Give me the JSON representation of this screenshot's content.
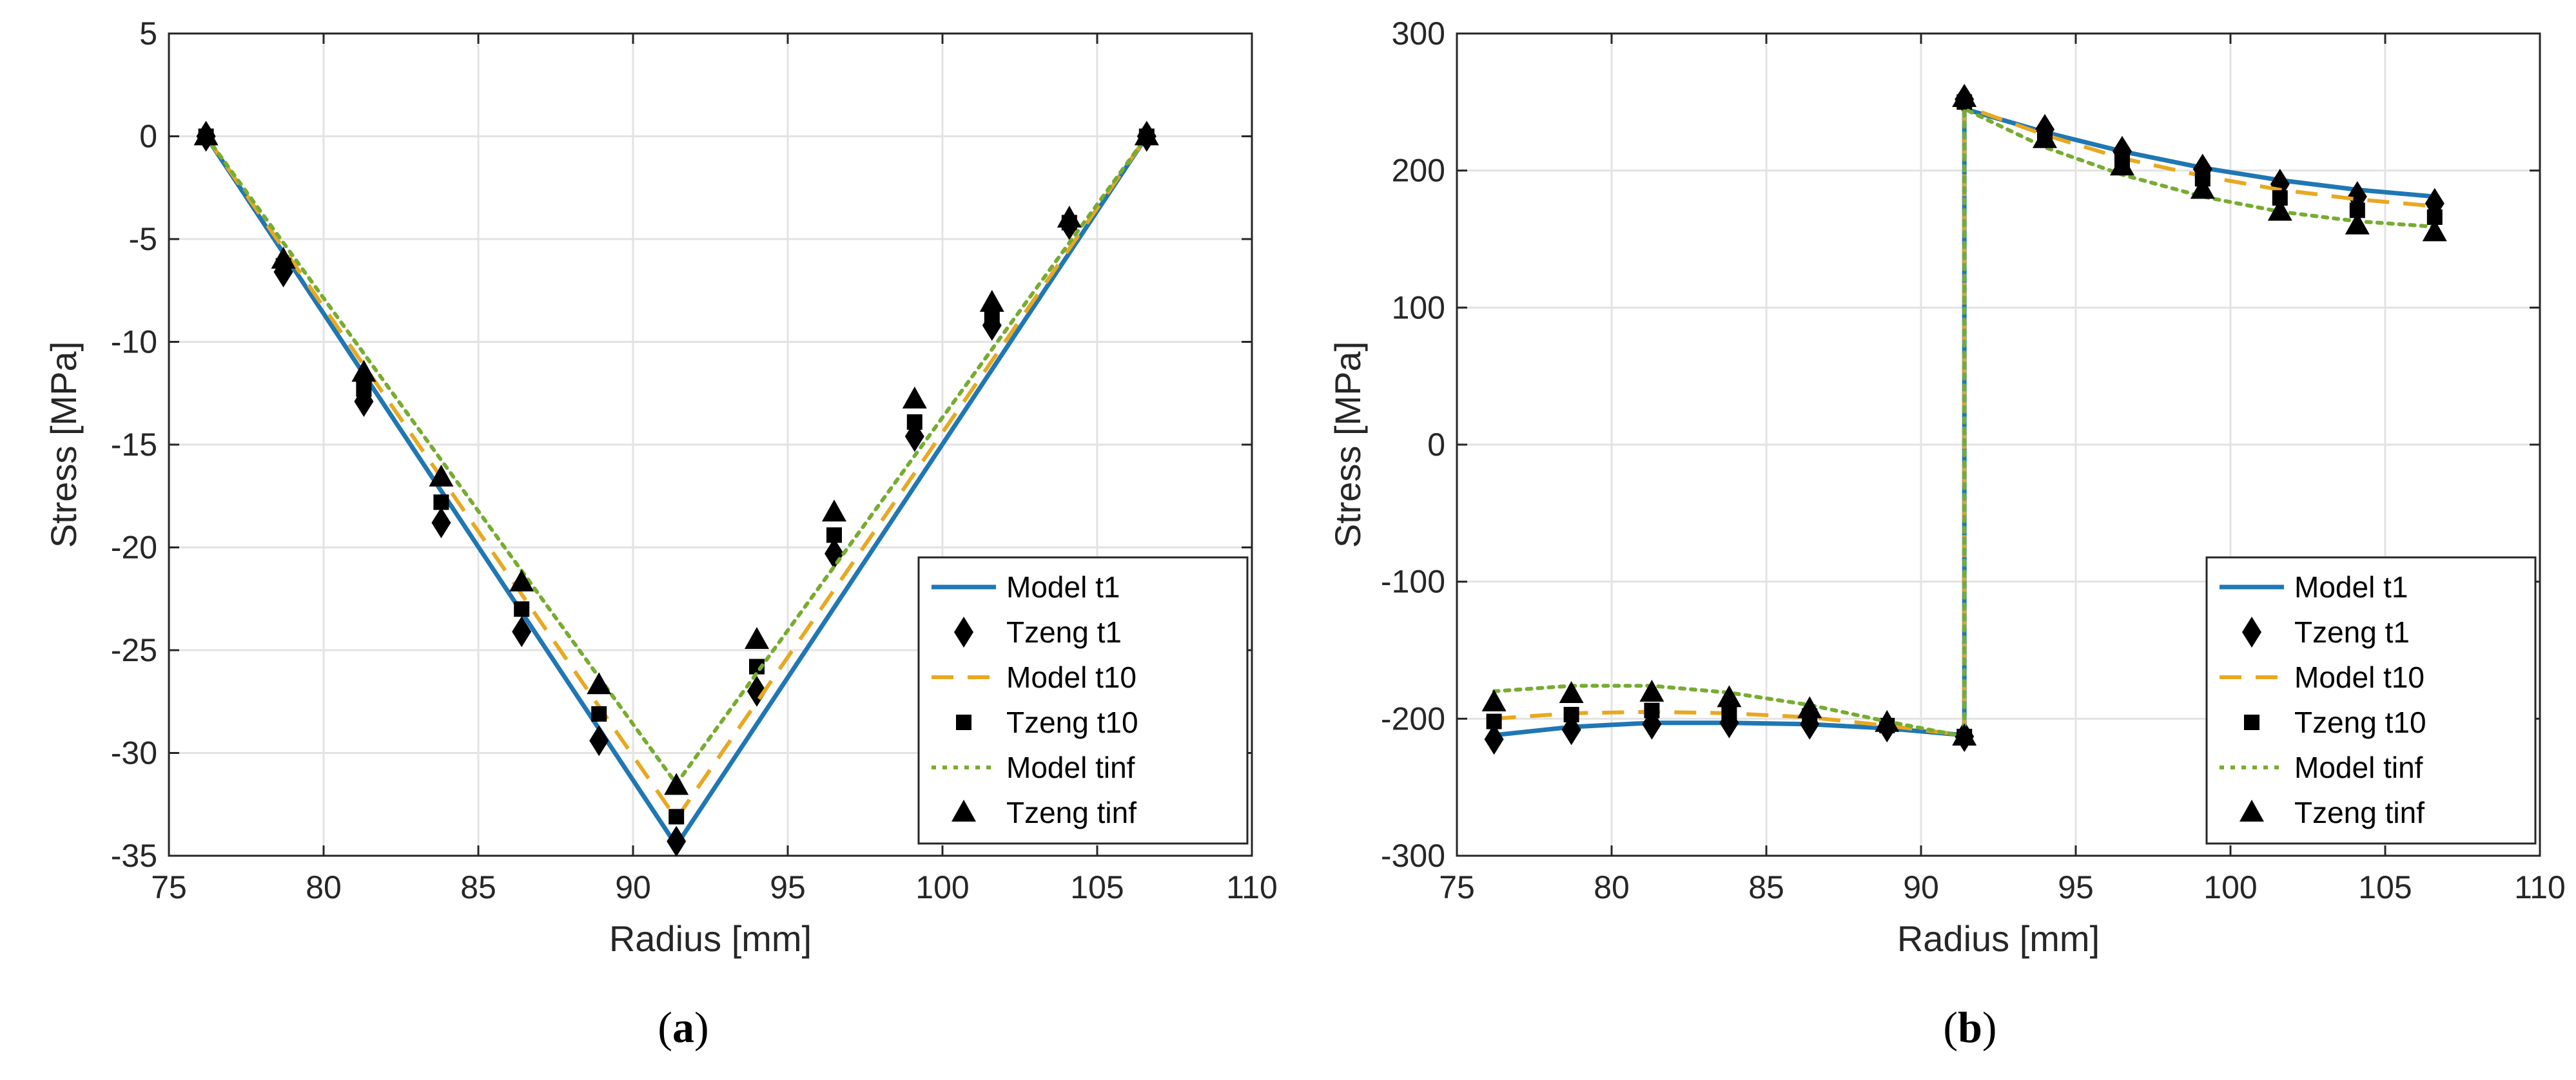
{
  "chart_data": [
    {
      "type": "line",
      "caption_open": "(",
      "caption_letter": "a",
      "caption_close": ")",
      "xlabel": "Radius [mm]",
      "ylabel": "Stress [MPa]",
      "xlim": [
        75,
        110
      ],
      "ylim": [
        -35,
        5
      ],
      "xticks": [
        75,
        80,
        85,
        90,
        95,
        100,
        105,
        110
      ],
      "yticks": [
        5,
        0,
        -5,
        -10,
        -15,
        -20,
        -25,
        -30,
        -35
      ],
      "grid": true,
      "legend_position": "bottom-right",
      "series": [
        {
          "name": "Model t1",
          "kind": "line",
          "style": "solid",
          "color": "#1f77b4",
          "x": [
            76.2,
            91.4,
            106.6
          ],
          "y": [
            0,
            -34.5,
            0
          ]
        },
        {
          "name": "Tzeng t1",
          "kind": "marker",
          "marker": "diamond",
          "color": "#000000",
          "x": [
            76.2,
            78.7,
            81.3,
            83.8,
            86.4,
            88.9,
            91.4,
            94.0,
            96.5,
            99.1,
            101.6,
            104.1,
            106.6
          ],
          "y": [
            0,
            -6.6,
            -12.9,
            -18.8,
            -24.1,
            -29.4,
            -34.3,
            -27.0,
            -20.3,
            -14.6,
            -9.2,
            -4.3,
            0
          ]
        },
        {
          "name": "Model t10",
          "kind": "line",
          "style": "dashed",
          "color": "#e8a820",
          "x": [
            76.2,
            91.4,
            106.6
          ],
          "y": [
            0,
            -33.2,
            0
          ]
        },
        {
          "name": "Tzeng t10",
          "kind": "marker",
          "marker": "square",
          "color": "#000000",
          "x": [
            76.2,
            78.7,
            81.3,
            83.8,
            86.4,
            88.9,
            91.4,
            94.0,
            96.5,
            99.1,
            101.6,
            104.1,
            106.6
          ],
          "y": [
            0,
            -6.3,
            -12.3,
            -17.8,
            -23.0,
            -28.1,
            -33.1,
            -25.8,
            -19.4,
            -13.9,
            -8.8,
            -4.2,
            0
          ]
        },
        {
          "name": "Model tinf",
          "kind": "line",
          "style": "dotted",
          "color": "#77ac30",
          "x": [
            76.2,
            91.4,
            106.6
          ],
          "y": [
            0,
            -31.5,
            0
          ]
        },
        {
          "name": "Tzeng tinf",
          "kind": "marker",
          "marker": "triangle",
          "color": "#000000",
          "x": [
            76.2,
            78.7,
            81.3,
            83.8,
            86.4,
            88.9,
            91.4,
            94.0,
            96.5,
            99.1,
            101.6,
            104.1,
            106.6
          ],
          "y": [
            0,
            -6.0,
            -11.5,
            -16.6,
            -21.7,
            -26.7,
            -31.6,
            -24.5,
            -18.3,
            -12.8,
            -8.1,
            -4.0,
            0
          ]
        }
      ]
    },
    {
      "type": "line",
      "caption_open": "(",
      "caption_letter": "b",
      "caption_close": ")",
      "xlabel": "Radius [mm]",
      "ylabel": "Stress [MPa]",
      "xlim": [
        75,
        110
      ],
      "ylim": [
        -300,
        300
      ],
      "xticks": [
        75,
        80,
        85,
        90,
        95,
        100,
        105,
        110
      ],
      "yticks": [
        300,
        200,
        100,
        0,
        -100,
        -200,
        -300
      ],
      "grid": true,
      "legend_position": "bottom-right",
      "series": [
        {
          "name": "Model t1",
          "kind": "line",
          "style": "solid",
          "color": "#1f77b4",
          "x": [
            76.2,
            78.7,
            81.3,
            83.8,
            86.4,
            88.9,
            91.4,
            91.4,
            94.0,
            96.5,
            99.1,
            101.6,
            104.1,
            106.6
          ],
          "y": [
            -212,
            -206,
            -203,
            -203,
            -204,
            -207,
            -212,
            245,
            228,
            214,
            202,
            193,
            186,
            181
          ]
        },
        {
          "name": "Tzeng t1",
          "kind": "marker",
          "marker": "diamond",
          "color": "#000000",
          "x": [
            76.2,
            78.7,
            81.3,
            83.8,
            86.4,
            88.9,
            91.4,
            91.4,
            94.0,
            96.5,
            99.1,
            101.6,
            104.1,
            106.6
          ],
          "y": [
            -215,
            -208,
            -204,
            -203,
            -204,
            -206,
            -213,
            252,
            230,
            214,
            201,
            190,
            181,
            176
          ]
        },
        {
          "name": "Model t10",
          "kind": "line",
          "style": "dashed",
          "color": "#e8a820",
          "x": [
            76.2,
            78.7,
            81.3,
            83.8,
            86.4,
            88.9,
            91.4,
            91.4,
            94.0,
            96.5,
            99.1,
            101.6,
            104.1,
            106.6
          ],
          "y": [
            -200,
            -196,
            -195,
            -196,
            -199,
            -205,
            -212,
            247,
            226,
            209,
            196,
            186,
            179,
            174
          ]
        },
        {
          "name": "Tzeng t10",
          "kind": "marker",
          "marker": "square",
          "color": "#000000",
          "x": [
            76.2,
            78.7,
            81.3,
            83.8,
            86.4,
            88.9,
            91.4,
            91.4,
            94.0,
            96.5,
            99.1,
            101.6,
            104.1,
            106.6
          ],
          "y": [
            -202,
            -197,
            -194,
            -195,
            -198,
            -205,
            -213,
            250,
            226,
            208,
            194,
            180,
            171,
            166
          ]
        },
        {
          "name": "Model tinf",
          "kind": "line",
          "style": "dotted",
          "color": "#77ac30",
          "x": [
            76.2,
            78.7,
            81.3,
            83.8,
            86.4,
            88.9,
            91.4,
            91.4,
            94.0,
            96.5,
            99.1,
            101.6,
            104.1,
            106.6
          ],
          "y": [
            -180,
            -176,
            -176,
            -181,
            -190,
            -202,
            -213,
            245,
            217,
            197,
            181,
            170,
            163,
            159
          ]
        },
        {
          "name": "Tzeng tinf",
          "kind": "marker",
          "marker": "triangle",
          "color": "#000000",
          "x": [
            76.2,
            78.7,
            81.3,
            83.8,
            86.4,
            88.9,
            91.4,
            91.4,
            94.0,
            96.5,
            99.1,
            101.6,
            104.1,
            106.6
          ],
          "y": [
            -188,
            -182,
            -181,
            -185,
            -193,
            -203,
            -213,
            253,
            223,
            203,
            186,
            170,
            160,
            155
          ]
        }
      ]
    }
  ]
}
